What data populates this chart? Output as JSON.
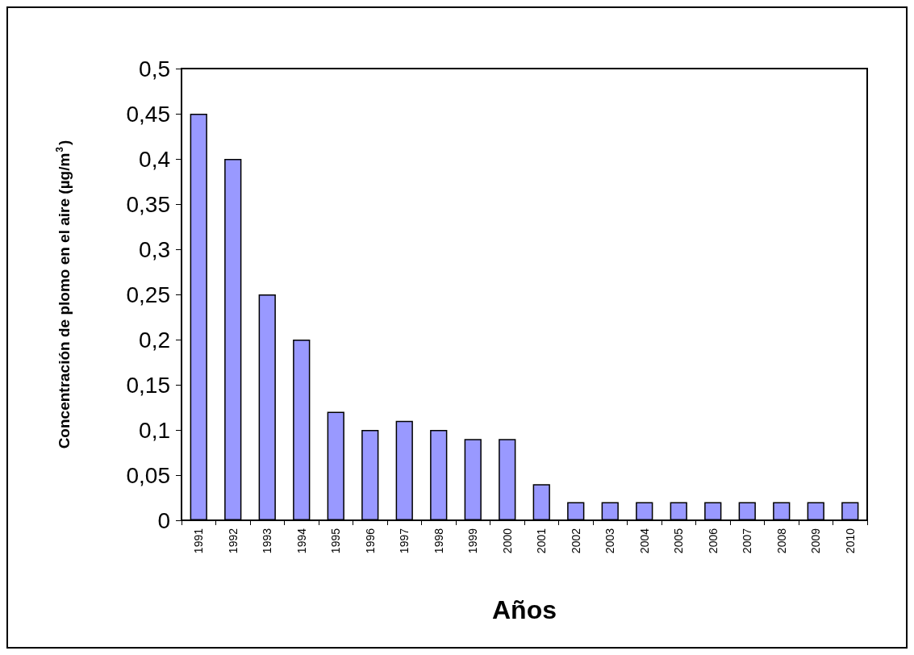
{
  "chart_data": {
    "type": "bar",
    "xlabel": "Años",
    "ylabel": "Concentración de plomo en el aire (µg/m$^{3}$)",
    "categories": [
      "1991",
      "1992",
      "1993",
      "1994",
      "1995",
      "1996",
      "1997",
      "1998",
      "1999",
      "2000",
      "2001",
      "2002",
      "2003",
      "2004",
      "2005",
      "2006",
      "2007",
      "2008",
      "2009",
      "2010"
    ],
    "values": [
      0.45,
      0.4,
      0.25,
      0.2,
      0.12,
      0.1,
      0.11,
      0.1,
      0.09,
      0.09,
      0.04,
      0.02,
      0.02,
      0.02,
      0.02,
      0.02,
      0.02,
      0.02,
      0.02,
      0.02
    ],
    "color": "#9999ff",
    "ylim": [
      0,
      0.5
    ],
    "yticks": [
      {
        "value": 0,
        "label": "0"
      },
      {
        "value": 0.05,
        "label": "0,05"
      },
      {
        "value": 0.1,
        "label": "0,1"
      },
      {
        "value": 0.15,
        "label": "0,15"
      },
      {
        "value": 0.2,
        "label": "0,2"
      },
      {
        "value": 0.25,
        "label": "0,25"
      },
      {
        "value": 0.3,
        "label": "0,3"
      },
      {
        "value": 0.35,
        "label": "0,35"
      },
      {
        "value": 0.4,
        "label": "0,4"
      },
      {
        "value": 0.45,
        "label": "0,45"
      },
      {
        "value": 0.5,
        "label": "0,5"
      }
    ],
    "grid": false
  }
}
